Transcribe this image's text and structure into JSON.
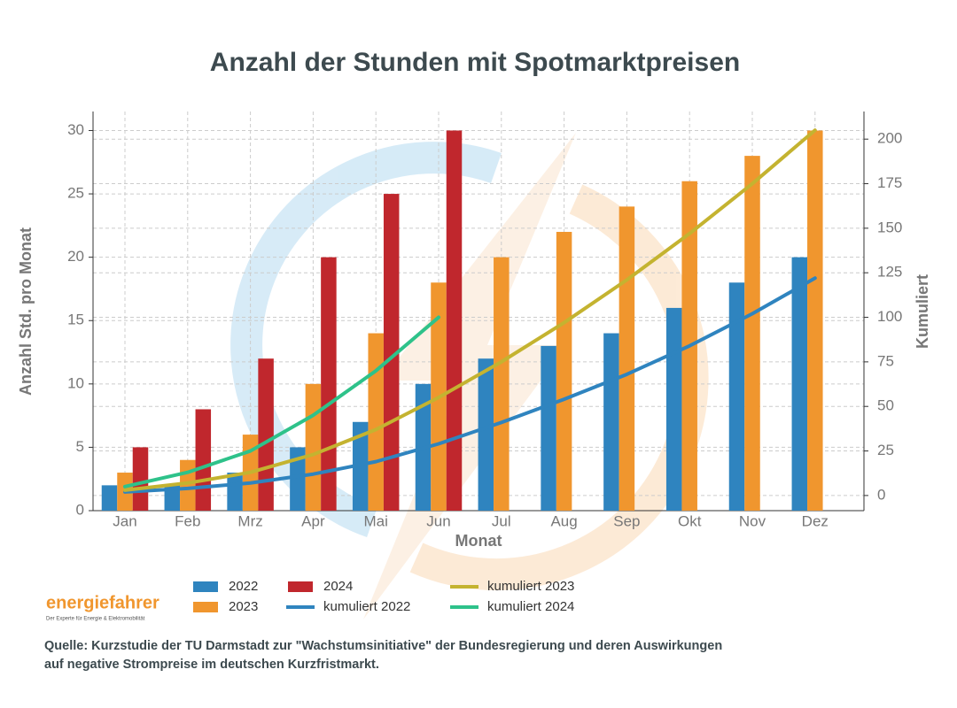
{
  "chart_data": {
    "type": "bar",
    "title": "Anzahl der Stunden mit Spotmarktpreisen",
    "x_label": "Monat",
    "y_label": "Anzahl Std. pro Monat",
    "y2_label": "Kumuliert",
    "categories": [
      "Jan",
      "Feb",
      "Mrz",
      "Apr",
      "Mai",
      "Jun",
      "Jul",
      "Aug",
      "Sep",
      "Okt",
      "Nov",
      "Dez"
    ],
    "ylim": [
      0,
      31.5
    ],
    "yticks": [
      0,
      5,
      10,
      15,
      20,
      25,
      30
    ],
    "y2lim": [
      -8.5,
      215.5
    ],
    "y2ticks": [
      0,
      25,
      50,
      75,
      100,
      125,
      150,
      175,
      200
    ],
    "grid": true,
    "series": [
      {
        "name": "2022",
        "kind": "bar",
        "color": "#2f84bf",
        "values": [
          2,
          2,
          3,
          5,
          7,
          10,
          12,
          13,
          14,
          16,
          18,
          20
        ]
      },
      {
        "name": "2023",
        "kind": "bar",
        "color": "#f0962e",
        "values": [
          3,
          4,
          6,
          10,
          14,
          18,
          20,
          22,
          24,
          26,
          28,
          30
        ]
      },
      {
        "name": "2024",
        "kind": "bar",
        "color": "#c0272d",
        "values": [
          5,
          8,
          12,
          20,
          25,
          30,
          null,
          null,
          null,
          null,
          null,
          null
        ]
      },
      {
        "name": "kumuliert 2022",
        "kind": "line",
        "axis": "y2",
        "color": "#2f84bf",
        "values": [
          2,
          4,
          7,
          12,
          19,
          29,
          41,
          54,
          68,
          84,
          102,
          122
        ]
      },
      {
        "name": "kumuliert 2023",
        "kind": "line",
        "axis": "y2",
        "color": "#c4b330",
        "values": [
          3,
          7,
          13,
          23,
          37,
          55,
          75,
          97,
          121,
          147,
          175,
          205
        ]
      },
      {
        "name": "kumuliert 2024",
        "kind": "line",
        "axis": "y2",
        "color": "#2ec28a",
        "values": [
          5,
          13,
          25,
          45,
          70,
          100,
          null,
          null,
          null,
          null,
          null,
          null
        ]
      }
    ]
  },
  "logo": {
    "name": "energiefahrer",
    "tagline": "Der Experte für Energie & Elektromobilität"
  },
  "source": [
    "Quelle: Kurzstudie der TU Darmstadt zur \"Wachstumsinitiative\" der Bundesregierung und deren Auswirkungen",
    "auf negative Strompreise im deutschen Kurzfristmarkt."
  ]
}
